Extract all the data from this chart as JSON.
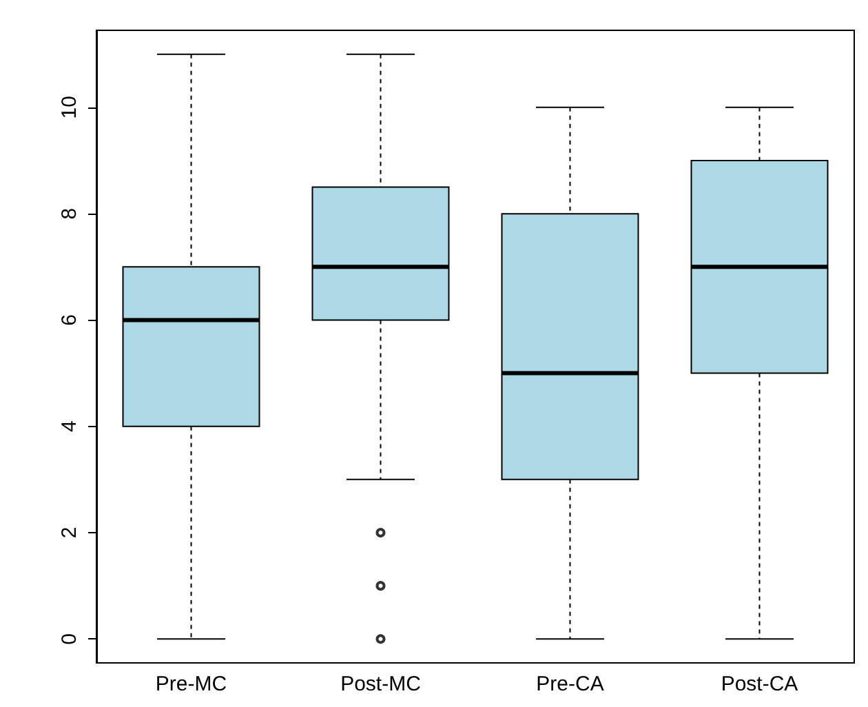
{
  "chart_data": {
    "type": "box",
    "categories": [
      "Pre-MC",
      "Post-MC",
      "Pre-CA",
      "Post-CA"
    ],
    "series": [
      {
        "color": "#add8e6",
        "boxes": [
          {
            "low": 0,
            "q1": 4,
            "median": 6,
            "q3": 7,
            "high": 11
          },
          {
            "low": 3,
            "q1": 6,
            "median": 7,
            "q3": 8.5,
            "high": 11,
            "outliers": [
              0,
              1,
              2
            ]
          },
          {
            "low": 0,
            "q1": 3,
            "median": 5,
            "q3": 8,
            "high": 10
          },
          {
            "low": 0,
            "q1": 5,
            "median": 7,
            "q3": 9,
            "high": 10
          }
        ]
      }
    ],
    "ylim": [
      -0.45,
      11.45
    ],
    "yticks": [
      0,
      2,
      4,
      6,
      8,
      10
    ],
    "grid": false,
    "marker": "circle"
  }
}
